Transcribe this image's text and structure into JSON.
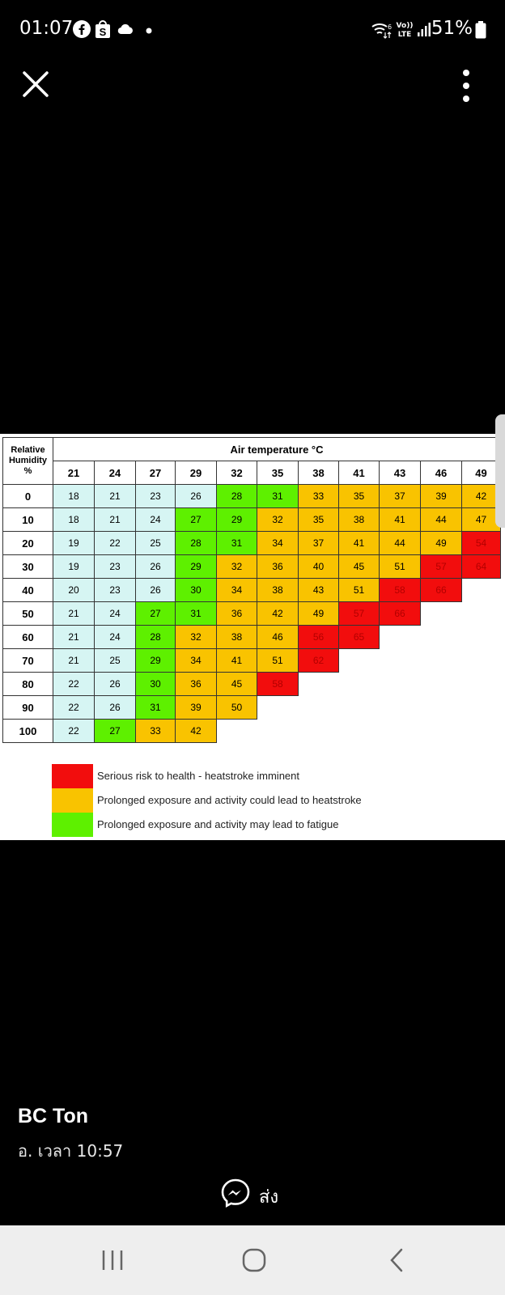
{
  "status_bar": {
    "time": "01:07",
    "battery": "51%",
    "icons": [
      "facebook-icon",
      "shopee-icon",
      "cloud-icon",
      "dot-icon",
      "wifi-icon",
      "volte-icon",
      "signal-icon",
      "battery-icon"
    ]
  },
  "viewer": {
    "close_icon": "close-icon",
    "more_icon": "more-vertical-icon"
  },
  "heat_table": {
    "corner_label": [
      "Relative",
      "Humidity",
      "%"
    ],
    "title": "Air temperature °C",
    "temperatures": [
      "21",
      "24",
      "27",
      "29",
      "32",
      "35",
      "38",
      "41",
      "43",
      "46",
      "49"
    ],
    "rows": [
      {
        "humidity": "0",
        "values": [
          "18",
          "21",
          "23",
          "26",
          "28",
          "31",
          "33",
          "35",
          "37",
          "39",
          "42"
        ],
        "colors": [
          "b",
          "b",
          "b",
          "b",
          "g",
          "g",
          "y",
          "y",
          "y",
          "y",
          "y"
        ]
      },
      {
        "humidity": "10",
        "values": [
          "18",
          "21",
          "24",
          "27",
          "29",
          "32",
          "35",
          "38",
          "41",
          "44",
          "47"
        ],
        "colors": [
          "b",
          "b",
          "b",
          "g",
          "g",
          "y",
          "y",
          "y",
          "y",
          "y",
          "y"
        ]
      },
      {
        "humidity": "20",
        "values": [
          "19",
          "22",
          "25",
          "28",
          "31",
          "34",
          "37",
          "41",
          "44",
          "49",
          "54"
        ],
        "colors": [
          "b",
          "b",
          "b",
          "g",
          "g",
          "y",
          "y",
          "y",
          "y",
          "y",
          "r"
        ]
      },
      {
        "humidity": "30",
        "values": [
          "19",
          "23",
          "26",
          "29",
          "32",
          "36",
          "40",
          "45",
          "51",
          "57",
          "64"
        ],
        "colors": [
          "b",
          "b",
          "b",
          "g",
          "y",
          "y",
          "y",
          "y",
          "y",
          "r",
          "r"
        ]
      },
      {
        "humidity": "40",
        "values": [
          "20",
          "23",
          "26",
          "30",
          "34",
          "38",
          "43",
          "51",
          "58",
          "66"
        ],
        "colors": [
          "b",
          "b",
          "b",
          "g",
          "y",
          "y",
          "y",
          "y",
          "r",
          "r"
        ]
      },
      {
        "humidity": "50",
        "values": [
          "21",
          "24",
          "27",
          "31",
          "36",
          "42",
          "49",
          "57",
          "66"
        ],
        "colors": [
          "b",
          "b",
          "g",
          "g",
          "y",
          "y",
          "y",
          "r",
          "r"
        ]
      },
      {
        "humidity": "60",
        "values": [
          "21",
          "24",
          "28",
          "32",
          "38",
          "46",
          "56",
          "65"
        ],
        "colors": [
          "b",
          "b",
          "g",
          "y",
          "y",
          "y",
          "r",
          "r"
        ]
      },
      {
        "humidity": "70",
        "values": [
          "21",
          "25",
          "29",
          "34",
          "41",
          "51",
          "62"
        ],
        "colors": [
          "b",
          "b",
          "g",
          "y",
          "y",
          "y",
          "r"
        ]
      },
      {
        "humidity": "80",
        "values": [
          "22",
          "26",
          "30",
          "36",
          "45",
          "58"
        ],
        "colors": [
          "b",
          "b",
          "g",
          "y",
          "y",
          "r"
        ]
      },
      {
        "humidity": "90",
        "values": [
          "22",
          "26",
          "31",
          "39",
          "50"
        ],
        "colors": [
          "b",
          "b",
          "g",
          "y",
          "y"
        ]
      },
      {
        "humidity": "100",
        "values": [
          "22",
          "27",
          "33",
          "42"
        ],
        "colors": [
          "b",
          "g",
          "y",
          "y"
        ]
      }
    ],
    "palette": {
      "b": "#d6f5f3",
      "g": "#5ef000",
      "y": "#f9c300",
      "r": "#f20d0d"
    },
    "legend": [
      {
        "color": "#f20d0d",
        "label": "Serious risk to health - heatstroke imminent"
      },
      {
        "color": "#f9c300",
        "label": "Prolonged exposure and activity could lead to heatstroke"
      },
      {
        "color": "#5ef000",
        "label": "Prolonged exposure and activity may lead to fatigue"
      }
    ]
  },
  "post": {
    "author": "BC Ton",
    "timestamp": "อ. เวลา 10:57",
    "send_label": "ส่ง",
    "send_icon": "messenger-icon"
  },
  "nav_bar": {
    "buttons": [
      "recent-apps-icon",
      "home-icon",
      "back-icon"
    ]
  }
}
